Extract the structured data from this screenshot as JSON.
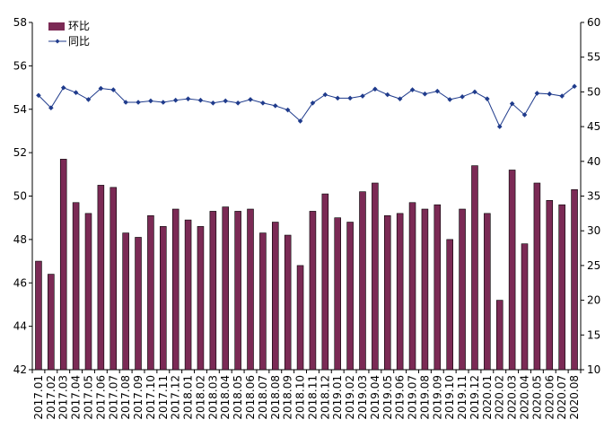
{
  "chart_data": {
    "type": "bar+line",
    "categories": [
      "2017.01",
      "2017.02",
      "2017.03",
      "2017.04",
      "2017.05",
      "2017.06",
      "2017.07",
      "2017.08",
      "2017.09",
      "2017.10",
      "2017.11",
      "2017.12",
      "2018.01",
      "2018.02",
      "2018.03",
      "2018.04",
      "2018.05",
      "2018.06",
      "2018.07",
      "2018.08",
      "2018.09",
      "2018.10",
      "2018.11",
      "2018.12",
      "2019.01",
      "2019.02",
      "2019.03",
      "2019.04",
      "2019.05",
      "2019.06",
      "2019.07",
      "2019.08",
      "2019.09",
      "2019.10",
      "2019.11",
      "2019.12",
      "2020.01",
      "2020.02",
      "2020.03",
      "2020.04",
      "2020.05",
      "2020.06",
      "2020.07",
      "2020.08"
    ],
    "series": [
      {
        "name": "环比",
        "type": "bar",
        "axis": "left",
        "color": "#7b2a55",
        "values": [
          47.0,
          46.4,
          51.7,
          49.7,
          49.2,
          50.5,
          50.4,
          48.3,
          48.1,
          49.1,
          48.6,
          49.4,
          48.9,
          48.6,
          49.3,
          49.5,
          49.3,
          49.4,
          48.3,
          48.8,
          48.2,
          46.8,
          49.3,
          50.1,
          49.0,
          48.8,
          50.2,
          50.6,
          49.1,
          49.2,
          49.7,
          49.4,
          49.6,
          48.0,
          49.4,
          51.4,
          49.2,
          45.2,
          51.2,
          47.8,
          50.6,
          49.8,
          49.6,
          50.3
        ]
      },
      {
        "name": "同比",
        "type": "line",
        "axis": "right",
        "color": "#1f3b8c",
        "values": [
          49.5,
          47.7,
          50.6,
          49.9,
          48.9,
          50.5,
          50.3,
          48.5,
          48.5,
          48.7,
          48.5,
          48.8,
          49.0,
          48.8,
          48.4,
          48.7,
          48.4,
          48.9,
          48.4,
          48.0,
          47.4,
          45.8,
          48.4,
          49.6,
          49.1,
          49.1,
          49.4,
          50.4,
          49.6,
          49.0,
          50.3,
          49.7,
          50.1,
          48.9,
          49.3,
          50.0,
          49.0,
          45.0,
          48.3,
          46.7,
          49.8,
          49.7,
          49.4,
          50.8
        ]
      }
    ],
    "y_left": {
      "min": 42,
      "max": 58,
      "ticks": [
        "42",
        "44",
        "46",
        "48",
        "50",
        "52",
        "54",
        "56",
        "58"
      ]
    },
    "y_right": {
      "min": 10,
      "max": 60,
      "ticks": [
        "10",
        "15",
        "20",
        "25",
        "30",
        "35",
        "40",
        "45",
        "50",
        "55",
        "60"
      ]
    },
    "grid": false,
    "legend_position": "top-left",
    "title": "",
    "xlabel": "",
    "ylabel": ""
  }
}
